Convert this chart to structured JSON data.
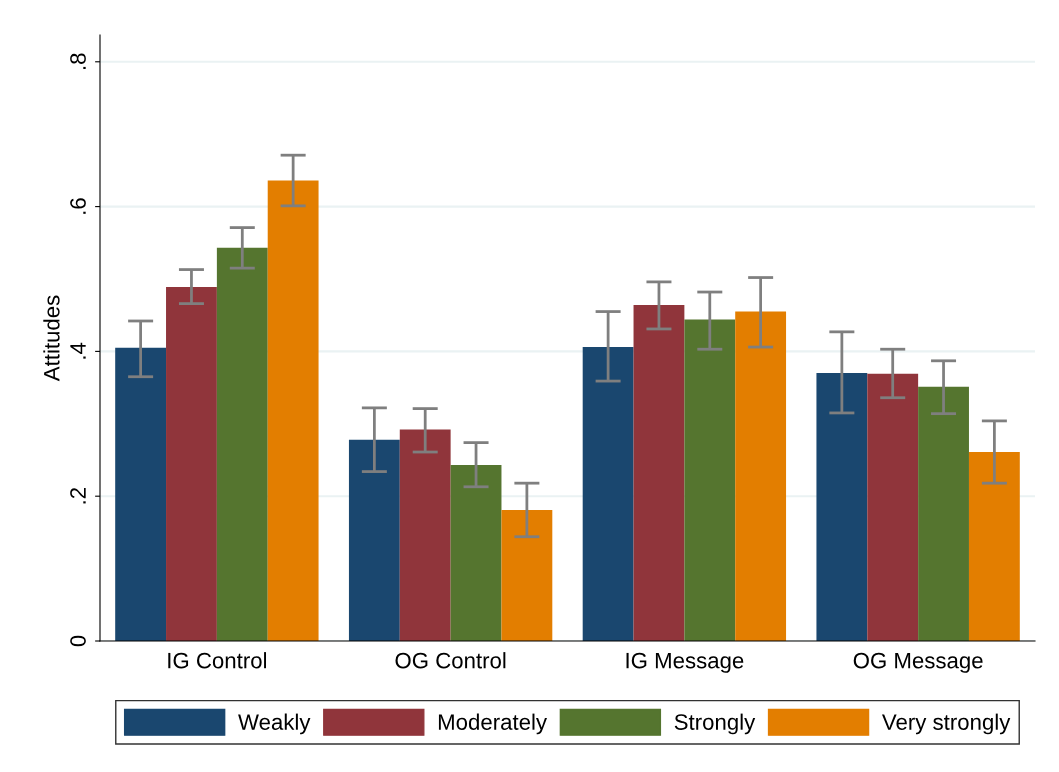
{
  "chart_data": {
    "type": "bar",
    "ylabel": "Attitudes",
    "categories": [
      "IG Control",
      "OG Control",
      "IG Message",
      "OG Message"
    ],
    "series": [
      {
        "name": "Weakly",
        "color": "#1a476f",
        "values": [
          0.405,
          0.278,
          0.406,
          0.37
        ],
        "errors": [
          [
            0.365,
            0.442
          ],
          [
            0.234,
            0.322
          ],
          [
            0.359,
            0.455
          ],
          [
            0.315,
            0.427
          ]
        ]
      },
      {
        "name": "Moderately",
        "color": "#90353b",
        "values": [
          0.489,
          0.292,
          0.464,
          0.369
        ],
        "errors": [
          [
            0.466,
            0.513
          ],
          [
            0.261,
            0.321
          ],
          [
            0.431,
            0.496
          ],
          [
            0.336,
            0.403
          ]
        ]
      },
      {
        "name": "Strongly",
        "color": "#55752f",
        "values": [
          0.543,
          0.243,
          0.444,
          0.351
        ],
        "errors": [
          [
            0.515,
            0.571
          ],
          [
            0.213,
            0.274
          ],
          [
            0.403,
            0.482
          ],
          [
            0.314,
            0.387
          ]
        ]
      },
      {
        "name": "Very strongly",
        "color": "#e37e00",
        "values": [
          0.636,
          0.181,
          0.455,
          0.261
        ],
        "errors": [
          [
            0.601,
            0.671
          ],
          [
            0.144,
            0.218
          ],
          [
            0.406,
            0.502
          ],
          [
            0.218,
            0.304
          ]
        ]
      }
    ],
    "ylim": [
      0,
      0.837
    ],
    "yticks": [
      0,
      {
        "value": 0.2,
        "label": ".2"
      },
      {
        "value": 0.4,
        "label": ".4"
      },
      {
        "value": 0.6,
        "label": ".6"
      },
      {
        "value": 0.8,
        "label": ".8"
      }
    ],
    "grid": "y",
    "legend": "bottom"
  }
}
